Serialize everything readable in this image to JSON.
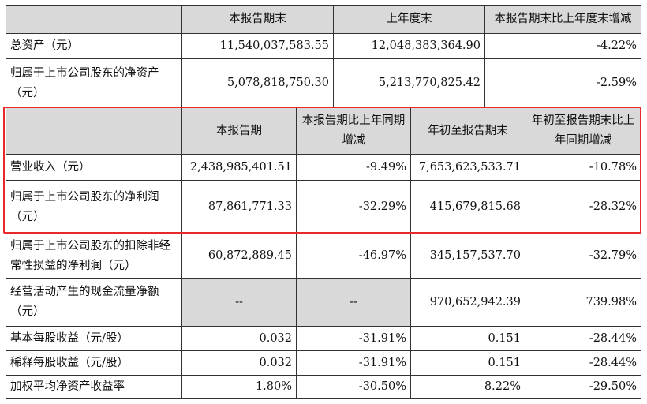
{
  "header_top": [
    "本报告期末",
    "上年度末",
    "本报告期末比上年度末增减"
  ],
  "top_rows": [
    {
      "label": "总资产（元）",
      "values": [
        "11,540,037,583.55",
        "12,048,383,364.90",
        "-4.22%"
      ]
    },
    {
      "label": "归属于上市公司股东的净资产（元）",
      "values": [
        "5,078,818,750.30",
        "5,213,770,825.42",
        "-2.59%"
      ]
    }
  ],
  "header_mid": [
    "本报告期",
    "本报告期比上年同期增减",
    "年初至报告期末",
    "年初至报告期末比上年同期增减"
  ],
  "bottom_rows": [
    {
      "label": "营业收入（元）",
      "values": [
        "2,438,985,401.51",
        "-9.49%",
        "7,653,623,533.71",
        "-10.78%"
      ]
    },
    {
      "label": "归属于上市公司股东的净利润（元）",
      "values": [
        "87,861,771.33",
        "-32.29%",
        "415,679,815.68",
        "-28.32%"
      ]
    },
    {
      "label": "归属于上市公司股东的扣除非经常性损益的净利润（元）",
      "values": [
        "60,872,889.45",
        "-46.97%",
        "345,157,537.70",
        "-32.79%"
      ]
    },
    {
      "label": "经营活动产生的现金流量净额（元）",
      "values": [
        "--",
        "--",
        "970,652,942.39",
        "739.98%"
      ]
    },
    {
      "label": "基本每股收益（元/股）",
      "values": [
        "0.032",
        "-31.91%",
        "0.151",
        "-28.44%"
      ]
    },
    {
      "label": "稀释每股收益（元/股）",
      "values": [
        "0.032",
        "-31.91%",
        "0.151",
        "-28.44%"
      ]
    },
    {
      "label": "加权平均净资产收益率",
      "values": [
        "1.80%",
        "-30.50%",
        "8.22%",
        "-29.50%"
      ]
    }
  ],
  "colors": {
    "header_bg": "#d9d9d9",
    "highlight": "#e8282a",
    "border": "#333333"
  }
}
